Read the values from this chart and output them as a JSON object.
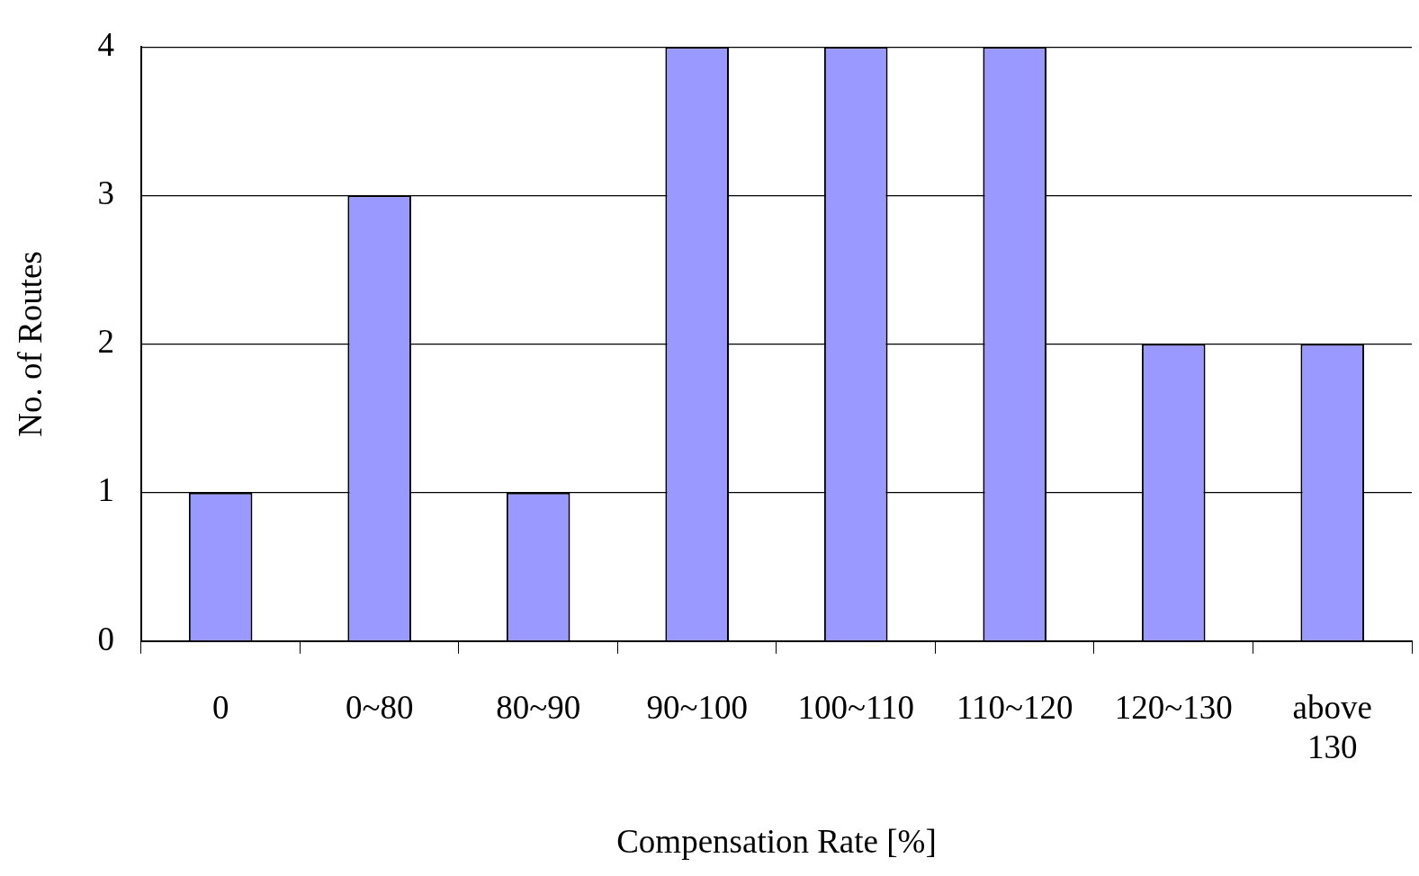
{
  "chart_data": {
    "type": "bar",
    "xlabel": "Compensation Rate [%]",
    "ylabel": "No. of Routes",
    "categories": [
      "0",
      "0~80",
      "80~90",
      "90~100",
      "100~110",
      "110~120",
      "120~130",
      "above 130"
    ],
    "values": [
      1,
      3,
      1,
      4,
      4,
      4,
      2,
      2
    ],
    "color": "#9999ff",
    "ylim": [
      0,
      4
    ],
    "yticks": [
      0,
      1,
      2,
      3,
      4
    ],
    "grid": "y",
    "legend": false
  }
}
